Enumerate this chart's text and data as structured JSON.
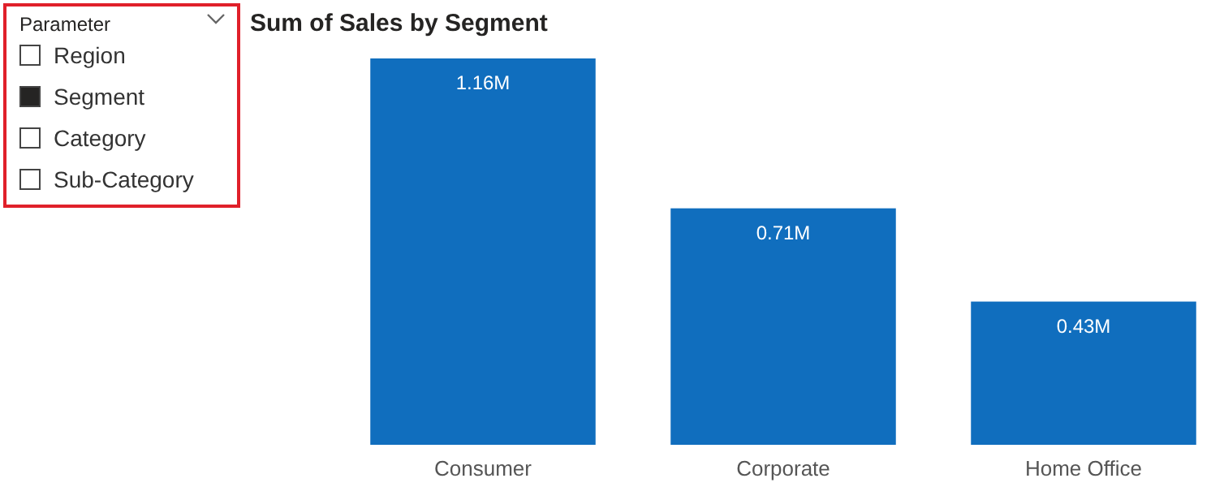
{
  "chart_data": {
    "type": "bar",
    "title": "Sum of Sales by Segment",
    "categories": [
      "Consumer",
      "Corporate",
      "Home Office"
    ],
    "values": [
      1.16,
      0.71,
      0.43
    ],
    "value_labels": [
      "1.16M",
      "0.71M",
      "0.43M"
    ],
    "color": "#106ebe",
    "annotations": [
      "Parameter",
      "Region",
      "Segment",
      "Category",
      "Sub-Category"
    ]
  }
}
